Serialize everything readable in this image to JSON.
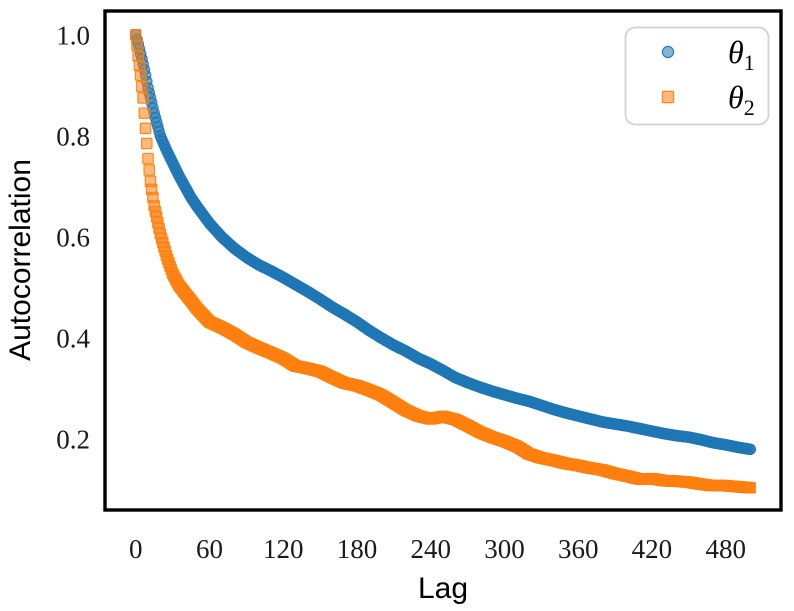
{
  "figure": {
    "background_color": "#ffffff",
    "spine_color": "#000000",
    "tick_label_color": "#1a1a1a",
    "legend_border_color": "#d3d3d3",
    "legend_background": "#ffffff"
  },
  "chart_data": {
    "type": "scatter",
    "title": "",
    "xlabel": "Lag",
    "ylabel": "Autocorrelation",
    "xlim": [
      -25,
      525
    ],
    "ylim": [
      0.06,
      1.047
    ],
    "x_ticks": [
      0,
      60,
      120,
      180,
      240,
      300,
      360,
      420,
      480
    ],
    "y_ticks": [
      1.0,
      0.8,
      0.6,
      0.4,
      0.2
    ],
    "grid": false,
    "legend_position": "upper right",
    "series": [
      {
        "name": "theta_1",
        "label_symbol": "θ",
        "label_subscript": "1",
        "marker": "circle",
        "color": "#1f77b4",
        "points": [
          [
            0,
            1.0
          ],
          [
            2,
            0.982
          ],
          [
            4,
            0.962
          ],
          [
            6,
            0.942
          ],
          [
            8,
            0.92
          ],
          [
            10,
            0.895
          ],
          [
            15,
            0.845
          ],
          [
            20,
            0.8
          ],
          [
            25,
            0.772
          ],
          [
            30,
            0.747
          ],
          [
            35,
            0.722
          ],
          [
            40,
            0.7
          ],
          [
            45,
            0.678
          ],
          [
            50,
            0.66
          ],
          [
            60,
            0.627
          ],
          [
            70,
            0.6
          ],
          [
            80,
            0.578
          ],
          [
            90,
            0.56
          ],
          [
            100,
            0.545
          ],
          [
            110,
            0.533
          ],
          [
            120,
            0.52
          ],
          [
            130,
            0.506
          ],
          [
            140,
            0.492
          ],
          [
            150,
            0.477
          ],
          [
            160,
            0.461
          ],
          [
            170,
            0.447
          ],
          [
            180,
            0.432
          ],
          [
            190,
            0.415
          ],
          [
            200,
            0.4
          ],
          [
            210,
            0.386
          ],
          [
            220,
            0.374
          ],
          [
            230,
            0.36
          ],
          [
            240,
            0.349
          ],
          [
            250,
            0.336
          ],
          [
            260,
            0.322
          ],
          [
            270,
            0.312
          ],
          [
            280,
            0.303
          ],
          [
            290,
            0.295
          ],
          [
            300,
            0.288
          ],
          [
            310,
            0.281
          ],
          [
            320,
            0.275
          ],
          [
            330,
            0.267
          ],
          [
            340,
            0.259
          ],
          [
            350,
            0.252
          ],
          [
            360,
            0.246
          ],
          [
            370,
            0.24
          ],
          [
            380,
            0.234
          ],
          [
            390,
            0.23
          ],
          [
            400,
            0.226
          ],
          [
            410,
            0.221
          ],
          [
            420,
            0.216
          ],
          [
            430,
            0.211
          ],
          [
            440,
            0.207
          ],
          [
            450,
            0.204
          ],
          [
            460,
            0.199
          ],
          [
            470,
            0.193
          ],
          [
            480,
            0.189
          ],
          [
            490,
            0.184
          ],
          [
            500,
            0.18
          ]
        ]
      },
      {
        "name": "theta_2",
        "label_symbol": "θ",
        "label_subscript": "2",
        "marker": "square",
        "color": "#ff7f0e",
        "points": [
          [
            0,
            1.0
          ],
          [
            2,
            0.958
          ],
          [
            4,
            0.92
          ],
          [
            6,
            0.875
          ],
          [
            8,
            0.815
          ],
          [
            10,
            0.755
          ],
          [
            12,
            0.71
          ],
          [
            15,
            0.662
          ],
          [
            20,
            0.606
          ],
          [
            25,
            0.563
          ],
          [
            30,
            0.528
          ],
          [
            35,
            0.505
          ],
          [
            40,
            0.489
          ],
          [
            45,
            0.474
          ],
          [
            50,
            0.458
          ],
          [
            60,
            0.432
          ],
          [
            70,
            0.421
          ],
          [
            80,
            0.408
          ],
          [
            90,
            0.392
          ],
          [
            100,
            0.381
          ],
          [
            110,
            0.371
          ],
          [
            120,
            0.36
          ],
          [
            130,
            0.345
          ],
          [
            140,
            0.34
          ],
          [
            150,
            0.334
          ],
          [
            160,
            0.322
          ],
          [
            170,
            0.311
          ],
          [
            180,
            0.306
          ],
          [
            190,
            0.297
          ],
          [
            200,
            0.287
          ],
          [
            210,
            0.272
          ],
          [
            220,
            0.257
          ],
          [
            230,
            0.246
          ],
          [
            240,
            0.24
          ],
          [
            250,
            0.245
          ],
          [
            260,
            0.239
          ],
          [
            270,
            0.227
          ],
          [
            280,
            0.214
          ],
          [
            290,
            0.204
          ],
          [
            300,
            0.196
          ],
          [
            310,
            0.186
          ],
          [
            320,
            0.171
          ],
          [
            330,
            0.163
          ],
          [
            340,
            0.158
          ],
          [
            350,
            0.152
          ],
          [
            360,
            0.148
          ],
          [
            370,
            0.143
          ],
          [
            380,
            0.139
          ],
          [
            390,
            0.132
          ],
          [
            400,
            0.127
          ],
          [
            410,
            0.121
          ],
          [
            420,
            0.122
          ],
          [
            430,
            0.118
          ],
          [
            440,
            0.117
          ],
          [
            450,
            0.115
          ],
          [
            460,
            0.111
          ],
          [
            470,
            0.108
          ],
          [
            480,
            0.108
          ],
          [
            490,
            0.106
          ],
          [
            500,
            0.104
          ]
        ]
      }
    ]
  }
}
